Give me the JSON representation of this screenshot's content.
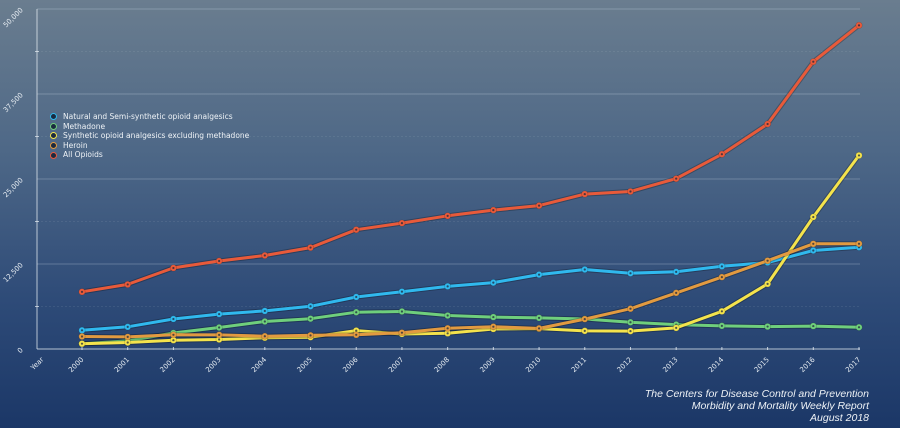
{
  "chart_data": {
    "type": "line",
    "title": "",
    "xlabel": "Year",
    "ylabel": "",
    "x": [
      2000,
      2001,
      2002,
      2003,
      2004,
      2005,
      2006,
      2007,
      2008,
      2009,
      2010,
      2011,
      2012,
      2013,
      2014,
      2015,
      2016,
      2017
    ],
    "x_tick_labels": [
      "2000",
      "2001",
      "2002",
      "2003",
      "2004",
      "2005",
      "2006",
      "2007",
      "2008",
      "2009",
      "2010",
      "2011",
      "2012",
      "2013",
      "2014",
      "2015",
      "2016",
      "2017"
    ],
    "ylim": [
      0,
      50000
    ],
    "y_ticks": [
      0,
      12500,
      25000,
      37500,
      50000
    ],
    "y_tick_labels": [
      "0",
      "12,500",
      "25,000",
      "37,500",
      "50,000"
    ],
    "grid": true,
    "legend_position": "left",
    "series": [
      {
        "name": "Natural and Semi-synthetic opioid analgesics",
        "color": "#30b9ee",
        "values": [
          2749,
          3259,
          4416,
          5135,
          5597,
          6284,
          7653,
          8432,
          9212,
          9760,
          10943,
          11693,
          11140,
          11346,
          12159,
          12727,
          14487,
          14958
        ]
      },
      {
        "name": "Methadone",
        "color": "#6fcf7c",
        "values": [
          784,
          1189,
          2358,
          3162,
          4048,
          4460,
          5406,
          5518,
          4924,
          4696,
          4577,
          4418,
          3932,
          3591,
          3400,
          3301,
          3373,
          3194
        ]
      },
      {
        "name": "Synthetic opioid analgesics excluding methadone",
        "color": "#f4e34c",
        "values": [
          782,
          957,
          1295,
          1400,
          1664,
          1742,
          2707,
          2213,
          2306,
          2946,
          3007,
          2666,
          2628,
          3105,
          5544,
          9580,
          19413,
          28466
        ]
      },
      {
        "name": "Heroin",
        "color": "#e29a40",
        "values": [
          1842,
          1779,
          2089,
          2080,
          1878,
          2009,
          2088,
          2399,
          3041,
          3278,
          3036,
          4397,
          5925,
          8257,
          10574,
          12989,
          15469,
          15482
        ]
      },
      {
        "name": "All Opioids",
        "color": "#e85a3a",
        "values": [
          8407,
          9496,
          11920,
          12940,
          13756,
          14918,
          17545,
          18516,
          19582,
          20422,
          21089,
          22784,
          23166,
          25052,
          28647,
          33091,
          42249,
          47600
        ]
      }
    ]
  },
  "source": {
    "line1": "The Centers for Disease Control and Prevention",
    "line2": "Morbidity and Mortality Weekly Report",
    "line3": "August 2018"
  }
}
